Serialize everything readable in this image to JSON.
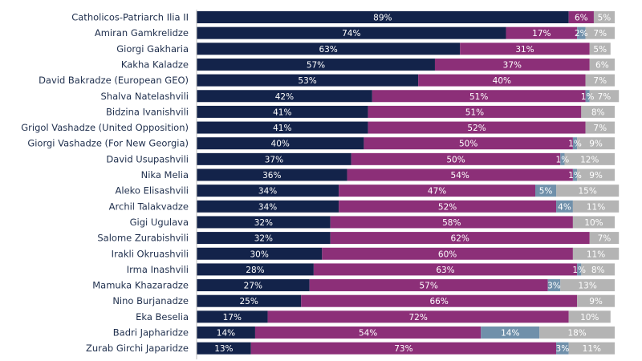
{
  "chart_data": {
    "type": "bar",
    "orientation": "horizontal",
    "stacked": true,
    "title": "",
    "xlabel": "",
    "ylabel": "",
    "xlim": [
      0,
      100
    ],
    "grid": false,
    "legend": "none",
    "categories": [
      "Catholicos-Patriarch Ilia II",
      "Amiran Gamkrelidze",
      "Giorgi Gakharia",
      "Kakha Kaladze",
      "David Bakradze (European GEO)",
      "Shalva Natelashvili",
      "Bidzina Ivanishvili",
      "Grigol Vashadze (United Opposition)",
      "Giorgi Vashadze (For New Georgia)",
      "David Usupashvili",
      "Nika Melia",
      "Aleko Elisashvili",
      "Archil Talakvadze",
      "Gigi Ugulava",
      "Salome Zurabishvili",
      "Irakli Okruashvili",
      "Irma Inashvili",
      "Mamuka Khazaradze",
      "Nino Burjanadze",
      "Eka Beselia",
      "Badri Japharidze",
      "Zurab Girchi Japaridze"
    ],
    "series": [
      {
        "color": "#13234a",
        "values": [
          89,
          74,
          63,
          57,
          53,
          42,
          41,
          41,
          40,
          37,
          36,
          34,
          34,
          32,
          32,
          30,
          28,
          27,
          25,
          17,
          14,
          13
        ],
        "labels": [
          "89%",
          "74%",
          "63%",
          "57%",
          "53%",
          "42%",
          "41%",
          "41%",
          "40%",
          "37%",
          "36%",
          "34%",
          "34%",
          "32%",
          "32%",
          "30%",
          "28%",
          "27%",
          "25%",
          "17%",
          "14%",
          "13%"
        ]
      },
      {
        "color": "#8c2f78",
        "values": [
          6,
          17,
          31,
          37,
          40,
          51,
          51,
          52,
          50,
          50,
          54,
          47,
          52,
          58,
          62,
          60,
          63,
          57,
          66,
          72,
          54,
          73
        ],
        "labels": [
          "6%",
          "17%",
          "31%",
          "37%",
          "40%",
          "51%",
          "51%",
          "52%",
          "50%",
          "50%",
          "54%",
          "47%",
          "52%",
          "58%",
          "62%",
          "60%",
          "63%",
          "57%",
          "66%",
          "72%",
          "54%",
          "73%"
        ]
      },
      {
        "color": "#7090aa",
        "values": [
          0,
          2,
          0,
          0,
          0,
          1,
          0,
          0,
          1,
          1,
          1,
          5,
          4,
          0,
          0,
          0,
          1,
          3,
          0,
          0,
          14,
          3
        ],
        "labels": [
          "",
          "2%",
          "",
          "",
          "",
          "1%",
          "",
          "",
          "1%",
          "1%",
          "1%",
          "5%",
          "4%",
          "",
          "",
          "",
          "1%",
          "3%",
          "",
          "",
          "14%",
          "3%"
        ]
      },
      {
        "color": "#b4b4b4",
        "values": [
          5,
          7,
          5,
          6,
          7,
          7,
          8,
          7,
          9,
          12,
          9,
          15,
          11,
          10,
          7,
          11,
          8,
          13,
          9,
          10,
          18,
          11
        ],
        "labels": [
          "5%",
          "7%",
          "5%",
          "6%",
          "7%",
          "7%",
          "8%",
          "7%",
          "9%",
          "12%",
          "9%",
          "15%",
          "11%",
          "10%",
          "7%",
          "11%",
          "8%",
          "13%",
          "9%",
          "10%",
          "18%",
          "11%"
        ]
      }
    ]
  }
}
